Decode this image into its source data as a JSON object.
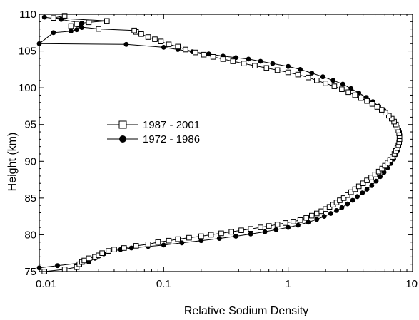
{
  "chart_data": {
    "type": "line",
    "xlabel": "Relative Sodium Density",
    "ylabel": "Height (km)",
    "x_scale": "log",
    "xlim": [
      0.01,
      10
    ],
    "ylim": [
      75,
      110
    ],
    "x_ticks": [
      {
        "value": 0.01,
        "label": "0.01"
      },
      {
        "value": 0.1,
        "label": "0.1"
      },
      {
        "value": 1,
        "label": "1"
      },
      {
        "value": 10,
        "label": "10"
      }
    ],
    "y_ticks": [
      {
        "value": 75,
        "label": "75"
      },
      {
        "value": 80,
        "label": "80"
      },
      {
        "value": 85,
        "label": "85"
      },
      {
        "value": 90,
        "label": "90"
      },
      {
        "value": 95,
        "label": "95"
      },
      {
        "value": 100,
        "label": "100"
      },
      {
        "value": 105,
        "label": "105"
      },
      {
        "value": 110,
        "label": "110"
      }
    ],
    "legend": {
      "placement": "center-left"
    },
    "series": [
      {
        "name": "1987 - 2001",
        "marker": "open-square",
        "color": "#000000",
        "points": [
          [
            0.011,
            75.0
          ],
          [
            0.016,
            75.3
          ],
          [
            0.02,
            75.6
          ],
          [
            0.021,
            76.0
          ],
          [
            0.022,
            76.3
          ],
          [
            0.023,
            76.5
          ],
          [
            0.025,
            76.8
          ],
          [
            0.028,
            77.0
          ],
          [
            0.03,
            77.2
          ],
          [
            0.032,
            77.5
          ],
          [
            0.036,
            77.8
          ],
          [
            0.04,
            78.0
          ],
          [
            0.048,
            78.2
          ],
          [
            0.06,
            78.5
          ],
          [
            0.075,
            78.7
          ],
          [
            0.09,
            79.0
          ],
          [
            0.11,
            79.2
          ],
          [
            0.13,
            79.4
          ],
          [
            0.16,
            79.6
          ],
          [
            0.2,
            79.8
          ],
          [
            0.24,
            80.0
          ],
          [
            0.29,
            80.2
          ],
          [
            0.35,
            80.4
          ],
          [
            0.42,
            80.6
          ],
          [
            0.5,
            80.8
          ],
          [
            0.6,
            81.0
          ],
          [
            0.7,
            81.2
          ],
          [
            0.82,
            81.4
          ],
          [
            0.95,
            81.6
          ],
          [
            1.1,
            81.8
          ],
          [
            1.25,
            82.0
          ],
          [
            1.4,
            82.3
          ],
          [
            1.55,
            82.6
          ],
          [
            1.7,
            82.9
          ],
          [
            1.85,
            83.2
          ],
          [
            2.0,
            83.5
          ],
          [
            2.15,
            83.8
          ],
          [
            2.3,
            84.1
          ],
          [
            2.45,
            84.4
          ],
          [
            2.6,
            84.7
          ],
          [
            2.8,
            85.0
          ],
          [
            3.0,
            85.4
          ],
          [
            3.2,
            85.8
          ],
          [
            3.45,
            86.2
          ],
          [
            3.7,
            86.6
          ],
          [
            4.0,
            87.0
          ],
          [
            4.3,
            87.4
          ],
          [
            4.65,
            87.8
          ],
          [
            5.0,
            88.2
          ],
          [
            5.35,
            88.6
          ],
          [
            5.7,
            89.0
          ],
          [
            6.0,
            89.4
          ],
          [
            6.3,
            89.8
          ],
          [
            6.6,
            90.2
          ],
          [
            6.9,
            90.6
          ],
          [
            7.15,
            91.0
          ],
          [
            7.35,
            91.4
          ],
          [
            7.55,
            91.8
          ],
          [
            7.7,
            92.2
          ],
          [
            7.8,
            92.6
          ],
          [
            7.85,
            93.0
          ],
          [
            7.85,
            93.4
          ],
          [
            7.8,
            93.8
          ],
          [
            7.7,
            94.2
          ],
          [
            7.55,
            94.6
          ],
          [
            7.35,
            95.0
          ],
          [
            7.1,
            95.4
          ],
          [
            6.8,
            95.8
          ],
          [
            6.45,
            96.2
          ],
          [
            6.05,
            96.6
          ],
          [
            5.65,
            97.0
          ],
          [
            5.2,
            97.4
          ],
          [
            4.75,
            97.8
          ],
          [
            4.3,
            98.2
          ],
          [
            3.85,
            98.6
          ],
          [
            3.45,
            99.0
          ],
          [
            3.05,
            99.4
          ],
          [
            2.7,
            99.8
          ],
          [
            2.35,
            100.2
          ],
          [
            2.0,
            100.6
          ],
          [
            1.7,
            101.0
          ],
          [
            1.45,
            101.4
          ],
          [
            1.2,
            101.8
          ],
          [
            1.0,
            102.1
          ],
          [
            0.82,
            102.4
          ],
          [
            0.67,
            102.7
          ],
          [
            0.54,
            103.0
          ],
          [
            0.44,
            103.3
          ],
          [
            0.36,
            103.6
          ],
          [
            0.3,
            103.9
          ],
          [
            0.25,
            104.2
          ],
          [
            0.21,
            104.5
          ],
          [
            0.18,
            104.8
          ],
          [
            0.15,
            105.2
          ],
          [
            0.13,
            105.6
          ],
          [
            0.11,
            105.9
          ],
          [
            0.095,
            106.3
          ],
          [
            0.085,
            106.6
          ],
          [
            0.075,
            106.9
          ],
          [
            0.066,
            107.3
          ],
          [
            0.06,
            107.6
          ],
          [
            0.058,
            107.8
          ],
          [
            0.03,
            108.0
          ],
          [
            0.018,
            108.4
          ],
          [
            0.02,
            108.7
          ],
          [
            0.025,
            108.9
          ],
          [
            0.035,
            109.1
          ],
          [
            0.013,
            109.5
          ],
          [
            0.016,
            109.8
          ]
        ]
      },
      {
        "name": "1972 - 1986",
        "marker": "filled-circle",
        "color": "#000000",
        "points": [
          [
            0.01,
            75.5
          ],
          [
            0.014,
            75.8
          ],
          [
            0.025,
            76.3
          ],
          [
            0.028,
            76.8
          ],
          [
            0.03,
            77.1
          ],
          [
            0.033,
            77.4
          ],
          [
            0.036,
            77.7
          ],
          [
            0.045,
            78.0
          ],
          [
            0.055,
            78.2
          ],
          [
            0.075,
            78.4
          ],
          [
            0.1,
            78.6
          ],
          [
            0.14,
            78.9
          ],
          [
            0.2,
            79.2
          ],
          [
            0.28,
            79.5
          ],
          [
            0.38,
            79.8
          ],
          [
            0.5,
            80.1
          ],
          [
            0.65,
            80.4
          ],
          [
            0.8,
            80.7
          ],
          [
            1.0,
            81.0
          ],
          [
            1.2,
            81.3
          ],
          [
            1.45,
            81.7
          ],
          [
            1.7,
            82.1
          ],
          [
            1.95,
            82.5
          ],
          [
            2.2,
            82.9
          ],
          [
            2.45,
            83.3
          ],
          [
            2.7,
            83.7
          ],
          [
            3.0,
            84.2
          ],
          [
            3.3,
            84.7
          ],
          [
            3.6,
            85.2
          ],
          [
            3.95,
            85.7
          ],
          [
            4.3,
            86.2
          ],
          [
            4.7,
            86.7
          ],
          [
            5.1,
            87.3
          ],
          [
            5.5,
            87.9
          ],
          [
            5.9,
            88.5
          ],
          [
            6.3,
            89.1
          ],
          [
            6.7,
            89.7
          ],
          [
            7.05,
            90.3
          ],
          [
            7.35,
            90.9
          ],
          [
            7.6,
            91.5
          ],
          [
            7.75,
            92.1
          ],
          [
            7.85,
            92.7
          ],
          [
            7.85,
            93.3
          ],
          [
            7.75,
            93.9
          ],
          [
            7.55,
            94.5
          ],
          [
            7.25,
            95.1
          ],
          [
            6.85,
            95.7
          ],
          [
            6.4,
            96.3
          ],
          [
            5.9,
            96.9
          ],
          [
            5.35,
            97.5
          ],
          [
            4.8,
            98.1
          ],
          [
            4.25,
            98.7
          ],
          [
            3.7,
            99.3
          ],
          [
            3.2,
            99.9
          ],
          [
            2.75,
            100.5
          ],
          [
            2.3,
            101.0
          ],
          [
            1.9,
            101.5
          ],
          [
            1.55,
            102.0
          ],
          [
            1.25,
            102.5
          ],
          [
            1.0,
            102.9
          ],
          [
            0.75,
            103.3
          ],
          [
            0.6,
            103.6
          ],
          [
            0.48,
            103.9
          ],
          [
            0.38,
            104.1
          ],
          [
            0.3,
            104.3
          ],
          [
            0.23,
            104.6
          ],
          [
            0.17,
            104.9
          ],
          [
            0.13,
            105.2
          ],
          [
            0.1,
            105.5
          ],
          [
            0.05,
            105.9
          ],
          [
            0.01,
            106.0
          ],
          [
            0.013,
            107.5
          ],
          [
            0.018,
            107.7
          ],
          [
            0.02,
            107.9
          ],
          [
            0.022,
            108.2
          ],
          [
            0.021,
            108.5
          ],
          [
            0.022,
            108.8
          ],
          [
            0.015,
            109.3
          ],
          [
            0.011,
            109.6
          ]
        ]
      }
    ]
  }
}
